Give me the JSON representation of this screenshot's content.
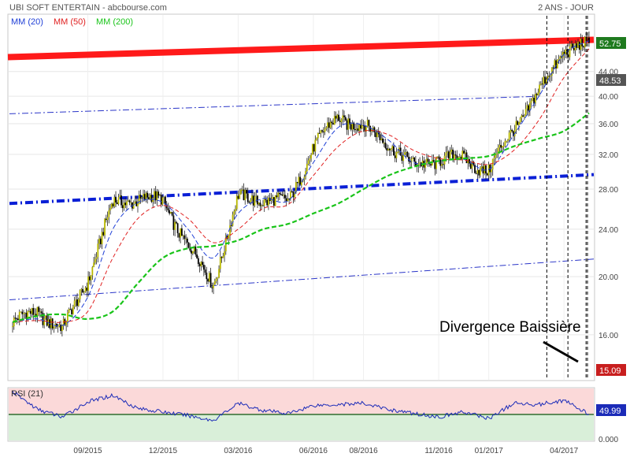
{
  "header": {
    "title": "UBI SOFT ENTERTAIN - abcbourse.com",
    "period": "2 ANS - JOUR"
  },
  "legend": [
    {
      "label": "MM (20)",
      "color": "#1f3fd6"
    },
    {
      "label": "MM (50)",
      "color": "#e02020"
    },
    {
      "label": "MM (200)",
      "color": "#19c419"
    }
  ],
  "annotation": {
    "text": "Divergence Baissière"
  },
  "price_badges": {
    "high": "52.75",
    "last": "48.53",
    "low": "15.09"
  },
  "rsi": {
    "label": "RSI (21)",
    "value": "49.99",
    "bottom_tick": "0.000"
  },
  "colors": {
    "candle_up": "#b8b800",
    "candle_down": "#000000",
    "mm20": "#1f3fd6",
    "mm50": "#e02020",
    "mm200": "#19c419",
    "resistance": "#ff1a1a",
    "support": "#0a1fd6",
    "channel": "#2a35c8",
    "rsi_line": "#1b2bb8",
    "rsi_over": "#fbd9d9",
    "rsi_under": "#d9efd9",
    "badge_high": "#1e7a1e",
    "badge_last": "#555555",
    "badge_low": "#c81e1e"
  },
  "chart_data": {
    "type": "candlestick",
    "title": "UBI SOFT ENTERTAIN",
    "x_ticks": [
      "09/2015",
      "12/2015",
      "03/2016",
      "06/2016",
      "08/2016",
      "11/2016",
      "01/2017",
      "04/2017"
    ],
    "y_ticks": [
      16.0,
      20.0,
      24.0,
      28.0,
      32.0,
      36.0,
      40.0,
      44.0
    ],
    "ylim": [
      13.5,
      54.5
    ],
    "scale": "log",
    "price_series": {
      "name": "UBI SOFT ENTERTAIN",
      "x": [
        "2015-06",
        "2015-07",
        "2015-08",
        "2015-09",
        "2015-10",
        "2015-11",
        "2015-12",
        "2016-01",
        "2016-02",
        "2016-03",
        "2016-04",
        "2016-05",
        "2016-06",
        "2016-07",
        "2016-08",
        "2016-09",
        "2016-10",
        "2016-11",
        "2016-12",
        "2017-01",
        "2017-02",
        "2017-03",
        "2017-04",
        "2017-05"
      ],
      "close": [
        16.8,
        17.5,
        16.3,
        19.8,
        26.5,
        27.0,
        26.8,
        22.5,
        19.5,
        27.0,
        27.0,
        26.5,
        33.0,
        37.0,
        35.5,
        33.5,
        30.5,
        31.5,
        31.5,
        30.0,
        35.5,
        40.5,
        48.0,
        48.53
      ]
    },
    "series": [
      {
        "name": "MM (20)",
        "values": [
          16.8,
          17.0,
          16.6,
          18.5,
          24.0,
          26.6,
          26.6,
          24.0,
          21.5,
          25.5,
          27.0,
          26.8,
          31.0,
          35.5,
          35.8,
          33.8,
          31.0,
          31.2,
          31.4,
          30.2,
          34.5,
          40.0,
          47.0,
          49.5
        ]
      },
      {
        "name": "MM (50)",
        "values": [
          16.8,
          16.9,
          16.8,
          17.5,
          21.5,
          25.0,
          26.3,
          25.0,
          22.8,
          24.0,
          26.0,
          26.4,
          29.5,
          33.0,
          35.0,
          34.5,
          32.5,
          31.5,
          31.3,
          30.8,
          32.5,
          36.5,
          43.0,
          48.0
        ]
      },
      {
        "name": "MM (200)",
        "values": [
          16.8,
          17.2,
          17.3,
          17.0,
          17.5,
          19.5,
          21.5,
          22.3,
          22.5,
          23.0,
          24.0,
          24.5,
          25.5,
          26.5,
          28.0,
          29.5,
          30.5,
          31.2,
          31.5,
          31.8,
          33.0,
          34.0,
          35.0,
          37.5
        ]
      }
    ],
    "trendlines": [
      {
        "name": "resistance",
        "from": [
          "2015-06",
          46.5
        ],
        "to": [
          "2017-05",
          49.7
        ]
      },
      {
        "name": "support",
        "from": [
          "2015-06",
          26.5
        ],
        "to": [
          "2017-05",
          29.6
        ]
      },
      {
        "name": "channel-top",
        "from": [
          "2015-06",
          37.4
        ],
        "to": [
          "2017-03",
          40.0
        ]
      },
      {
        "name": "channel-bottom",
        "from": [
          "2015-06",
          18.3
        ],
        "to": [
          "2017-05",
          21.4
        ]
      }
    ],
    "rsi": {
      "name": "RSI (21)",
      "ylim": [
        0,
        100
      ],
      "midline": 50,
      "x": [
        "2015-06",
        "2015-07",
        "2015-08",
        "2015-09",
        "2015-10",
        "2015-11",
        "2015-12",
        "2016-01",
        "2016-02",
        "2016-03",
        "2016-04",
        "2016-05",
        "2016-06",
        "2016-07",
        "2016-08",
        "2016-09",
        "2016-10",
        "2016-11",
        "2016-12",
        "2017-01",
        "2017-02",
        "2017-03",
        "2017-04",
        "2017-05"
      ],
      "values": [
        95,
        60,
        45,
        75,
        88,
        62,
        55,
        48,
        38,
        72,
        58,
        52,
        68,
        70,
        72,
        60,
        52,
        45,
        55,
        42,
        72,
        70,
        78,
        49.99
      ]
    }
  }
}
